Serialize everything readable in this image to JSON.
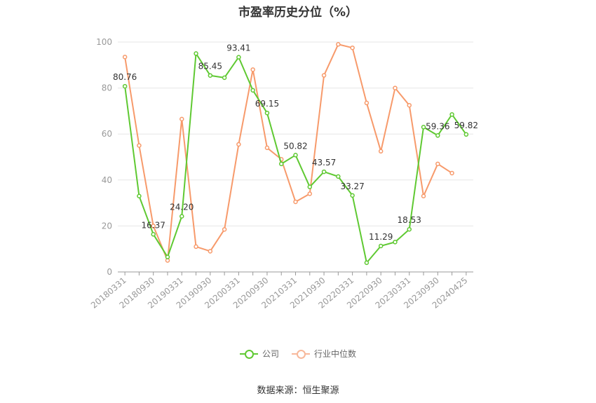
{
  "chart_data": {
    "type": "line",
    "title": "市盈率历史分位（%）",
    "xlabel": "",
    "ylabel": "",
    "ylim": [
      0,
      100
    ],
    "yticks": [
      0,
      20,
      40,
      60,
      80,
      100
    ],
    "grid": true,
    "legend_position": "bottom",
    "x": [
      "20180331",
      "20180630",
      "20180930",
      "20181231",
      "20190331",
      "20190630",
      "20190930",
      "20191231",
      "20200331",
      "20200630",
      "20200930",
      "20201231",
      "20210331",
      "20210630",
      "20210930",
      "20211231",
      "20220331",
      "20220630",
      "20220930",
      "20221231",
      "20230331",
      "20230630",
      "20230930",
      "20231231",
      "20240425"
    ],
    "x_tick_labels": [
      "20180331",
      "20180930",
      "20190331",
      "20190930",
      "20200331",
      "20200930",
      "20210331",
      "20210930",
      "20220331",
      "20220930",
      "20230331",
      "20230930",
      "20240425"
    ],
    "series": [
      {
        "name": "公司",
        "color": "#5fc932",
        "values": [
          80.76,
          33.0,
          16.37,
          6.5,
          24.2,
          95.0,
          85.45,
          84.5,
          93.41,
          79.0,
          69.15,
          47.0,
          50.82,
          37.0,
          43.57,
          41.5,
          33.27,
          4.0,
          11.29,
          13.0,
          18.53,
          63.0,
          59.36,
          68.5,
          59.82
        ],
        "labels": [
          "80.76",
          "",
          "16.37",
          "",
          "24.20",
          "",
          "85.45",
          "",
          "93.41",
          "",
          "69.15",
          "",
          "50.82",
          "",
          "43.57",
          "",
          "33.27",
          "",
          "11.29",
          "",
          "18.53",
          "",
          "59.36",
          "",
          "59.82"
        ]
      },
      {
        "name": "行业中位数",
        "color": "#f79a6b",
        "values": [
          93.5,
          55.0,
          20.0,
          5.0,
          66.5,
          11.0,
          9.0,
          18.5,
          55.5,
          88.0,
          54.0,
          49.0,
          30.5,
          34.0,
          85.5,
          99.0,
          97.5,
          73.5,
          52.5,
          80.0,
          72.5,
          33.0,
          47.0,
          43.0,
          null
        ]
      }
    ]
  },
  "legend": {
    "company": "公司",
    "industry": "行业中位数"
  },
  "source": "数据来源：恒生聚源"
}
